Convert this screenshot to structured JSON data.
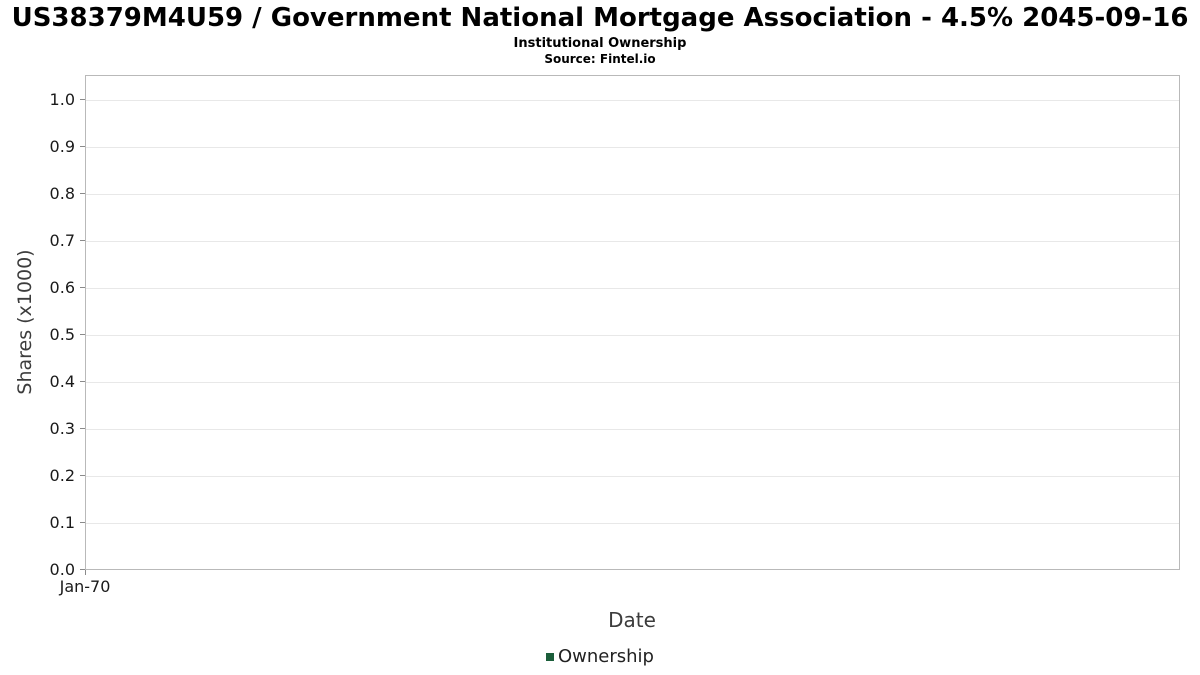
{
  "chart_data": {
    "type": "line",
    "title": "US38379M4U59 / Government National Mortgage Association - 4.5% 2045-09-16",
    "subtitle": "Institutional Ownership",
    "source": "Source: Fintel.io",
    "xlabel": "Date",
    "ylabel": "Shares (x1000)",
    "ylim": [
      0.0,
      1.05
    ],
    "yticks": [
      "0.0",
      "0.1",
      "0.2",
      "0.3",
      "0.4",
      "0.5",
      "0.6",
      "0.7",
      "0.8",
      "0.9",
      "1.0"
    ],
    "xticks": [
      "Jan-70"
    ],
    "grid": true,
    "legend_position": "bottom",
    "series": [
      {
        "name": "Ownership",
        "color": "#1b5e3a",
        "x": [],
        "values": []
      }
    ],
    "colors": {
      "grid": "#e8e8e8",
      "plot_border": "#b9b9b9",
      "legend_marker": "#1b5e3a"
    }
  }
}
